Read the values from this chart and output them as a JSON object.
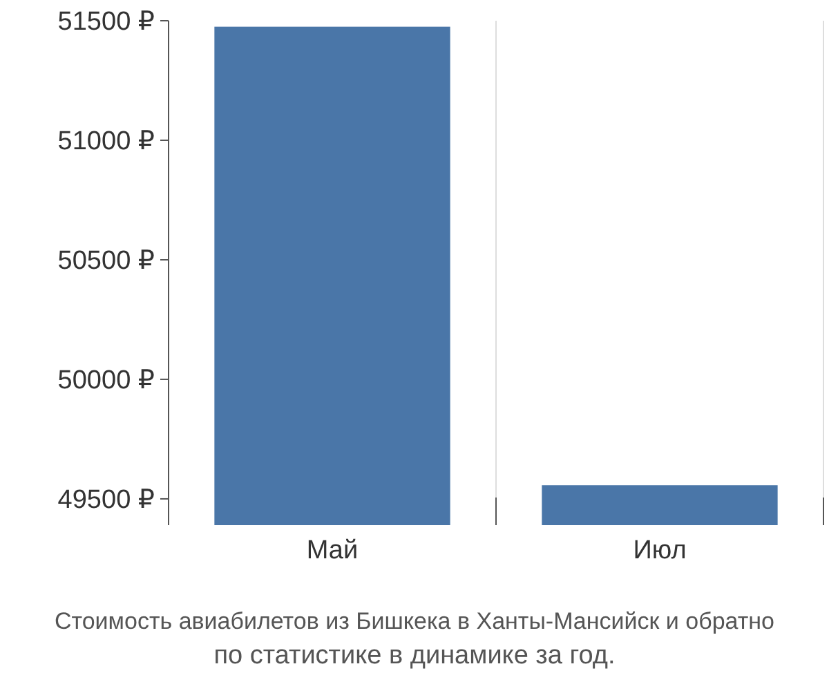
{
  "chart_data": {
    "type": "bar",
    "title": "Стоимость авиабилетов из Бишкека в Ханты-Мансийск и обратно",
    "subtitle": "по статистике в динамике за год.",
    "categories": [
      "Май",
      "Июл"
    ],
    "values": [
      51475,
      49557
    ],
    "color": "#4a76a8",
    "ylim": [
      49390,
      51500
    ],
    "yticks": [
      {
        "value": 49500,
        "label": "49500 ₽"
      },
      {
        "value": 50000,
        "label": "50000 ₽"
      },
      {
        "value": 50500,
        "label": "50500 ₽"
      },
      {
        "value": 51000,
        "label": "51000 ₽"
      },
      {
        "value": 51500,
        "label": "51500 ₽"
      }
    ],
    "grid": "x"
  }
}
